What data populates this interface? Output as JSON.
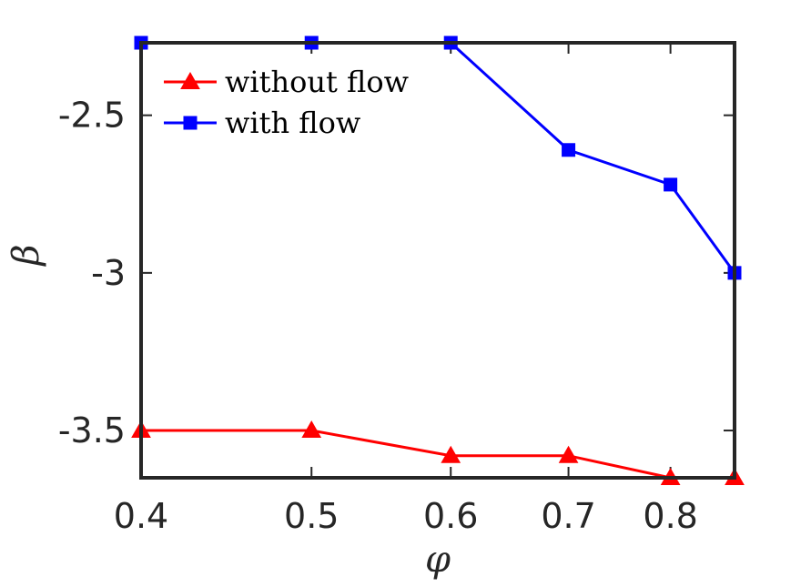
{
  "chart_data": {
    "type": "line",
    "x": [
      0.4,
      0.5,
      0.6,
      0.7,
      0.8,
      0.87
    ],
    "series": [
      {
        "name": "without flow",
        "color": "#ff0000",
        "marker": "triangle",
        "values": [
          -3.5,
          -3.5,
          -3.58,
          -3.58,
          -3.65,
          -3.65
        ]
      },
      {
        "name": "with flow",
        "color": "#0000ff",
        "marker": "square",
        "values": [
          -2.27,
          -2.27,
          -2.27,
          -2.61,
          -2.72,
          -3.0
        ]
      }
    ],
    "xlabel": "φ",
    "ylabel": "β",
    "xticks": [
      0.4,
      0.5,
      0.6,
      0.7,
      0.8
    ],
    "xtick_labels": [
      "0.4",
      "0.5",
      "0.6",
      "0.7",
      "0.8"
    ],
    "yticks": [
      -2.5,
      -3,
      -3.5
    ],
    "ytick_labels": [
      "-2.5",
      "-3",
      "-3.5"
    ],
    "xscale": "log",
    "xlim": [
      0.4,
      0.87
    ],
    "ylim": [
      -3.65,
      -2.27
    ],
    "grid": false,
    "legend_position": "top-left"
  }
}
